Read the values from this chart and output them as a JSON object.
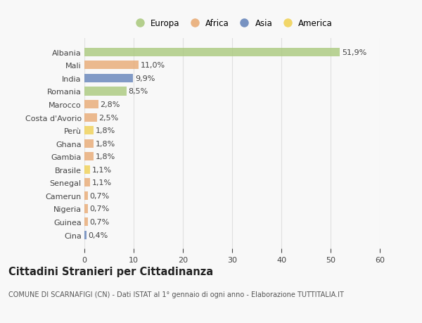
{
  "countries": [
    "Albania",
    "Mali",
    "India",
    "Romania",
    "Marocco",
    "Costa d'Avorio",
    "Perù",
    "Ghana",
    "Gambia",
    "Brasile",
    "Senegal",
    "Camerun",
    "Nigeria",
    "Guinea",
    "Cina"
  ],
  "values": [
    51.9,
    11.0,
    9.9,
    8.5,
    2.8,
    2.5,
    1.8,
    1.8,
    1.8,
    1.1,
    1.1,
    0.7,
    0.7,
    0.7,
    0.4
  ],
  "labels": [
    "51,9%",
    "11,0%",
    "9,9%",
    "8,5%",
    "2,8%",
    "2,5%",
    "1,8%",
    "1,8%",
    "1,8%",
    "1,1%",
    "1,1%",
    "0,7%",
    "0,7%",
    "0,7%",
    "0,4%"
  ],
  "continents": [
    "Europa",
    "Africa",
    "Asia",
    "Europa",
    "Africa",
    "Africa",
    "America",
    "Africa",
    "Africa",
    "America",
    "Africa",
    "Africa",
    "Africa",
    "Africa",
    "Asia"
  ],
  "continent_colors": {
    "Europa": "#a8c87a",
    "Africa": "#e8a870",
    "Asia": "#6080b8",
    "America": "#f0d050"
  },
  "legend_order": [
    "Europa",
    "Africa",
    "Asia",
    "America"
  ],
  "title": "Cittadini Stranieri per Cittadinanza",
  "subtitle": "COMUNE DI SCARNAFIGI (CN) - Dati ISTAT al 1° gennaio di ogni anno - Elaborazione TUTTITALIA.IT",
  "xlim": [
    0,
    60
  ],
  "xticks": [
    0,
    10,
    20,
    30,
    40,
    50,
    60
  ],
  "background_color": "#f8f8f8",
  "bar_height": 0.65,
  "grid_color": "#e0e0e0",
  "text_color": "#444444",
  "label_fontsize": 8,
  "tick_fontsize": 8,
  "title_fontsize": 10.5,
  "subtitle_fontsize": 7,
  "legend_fontsize": 8.5
}
